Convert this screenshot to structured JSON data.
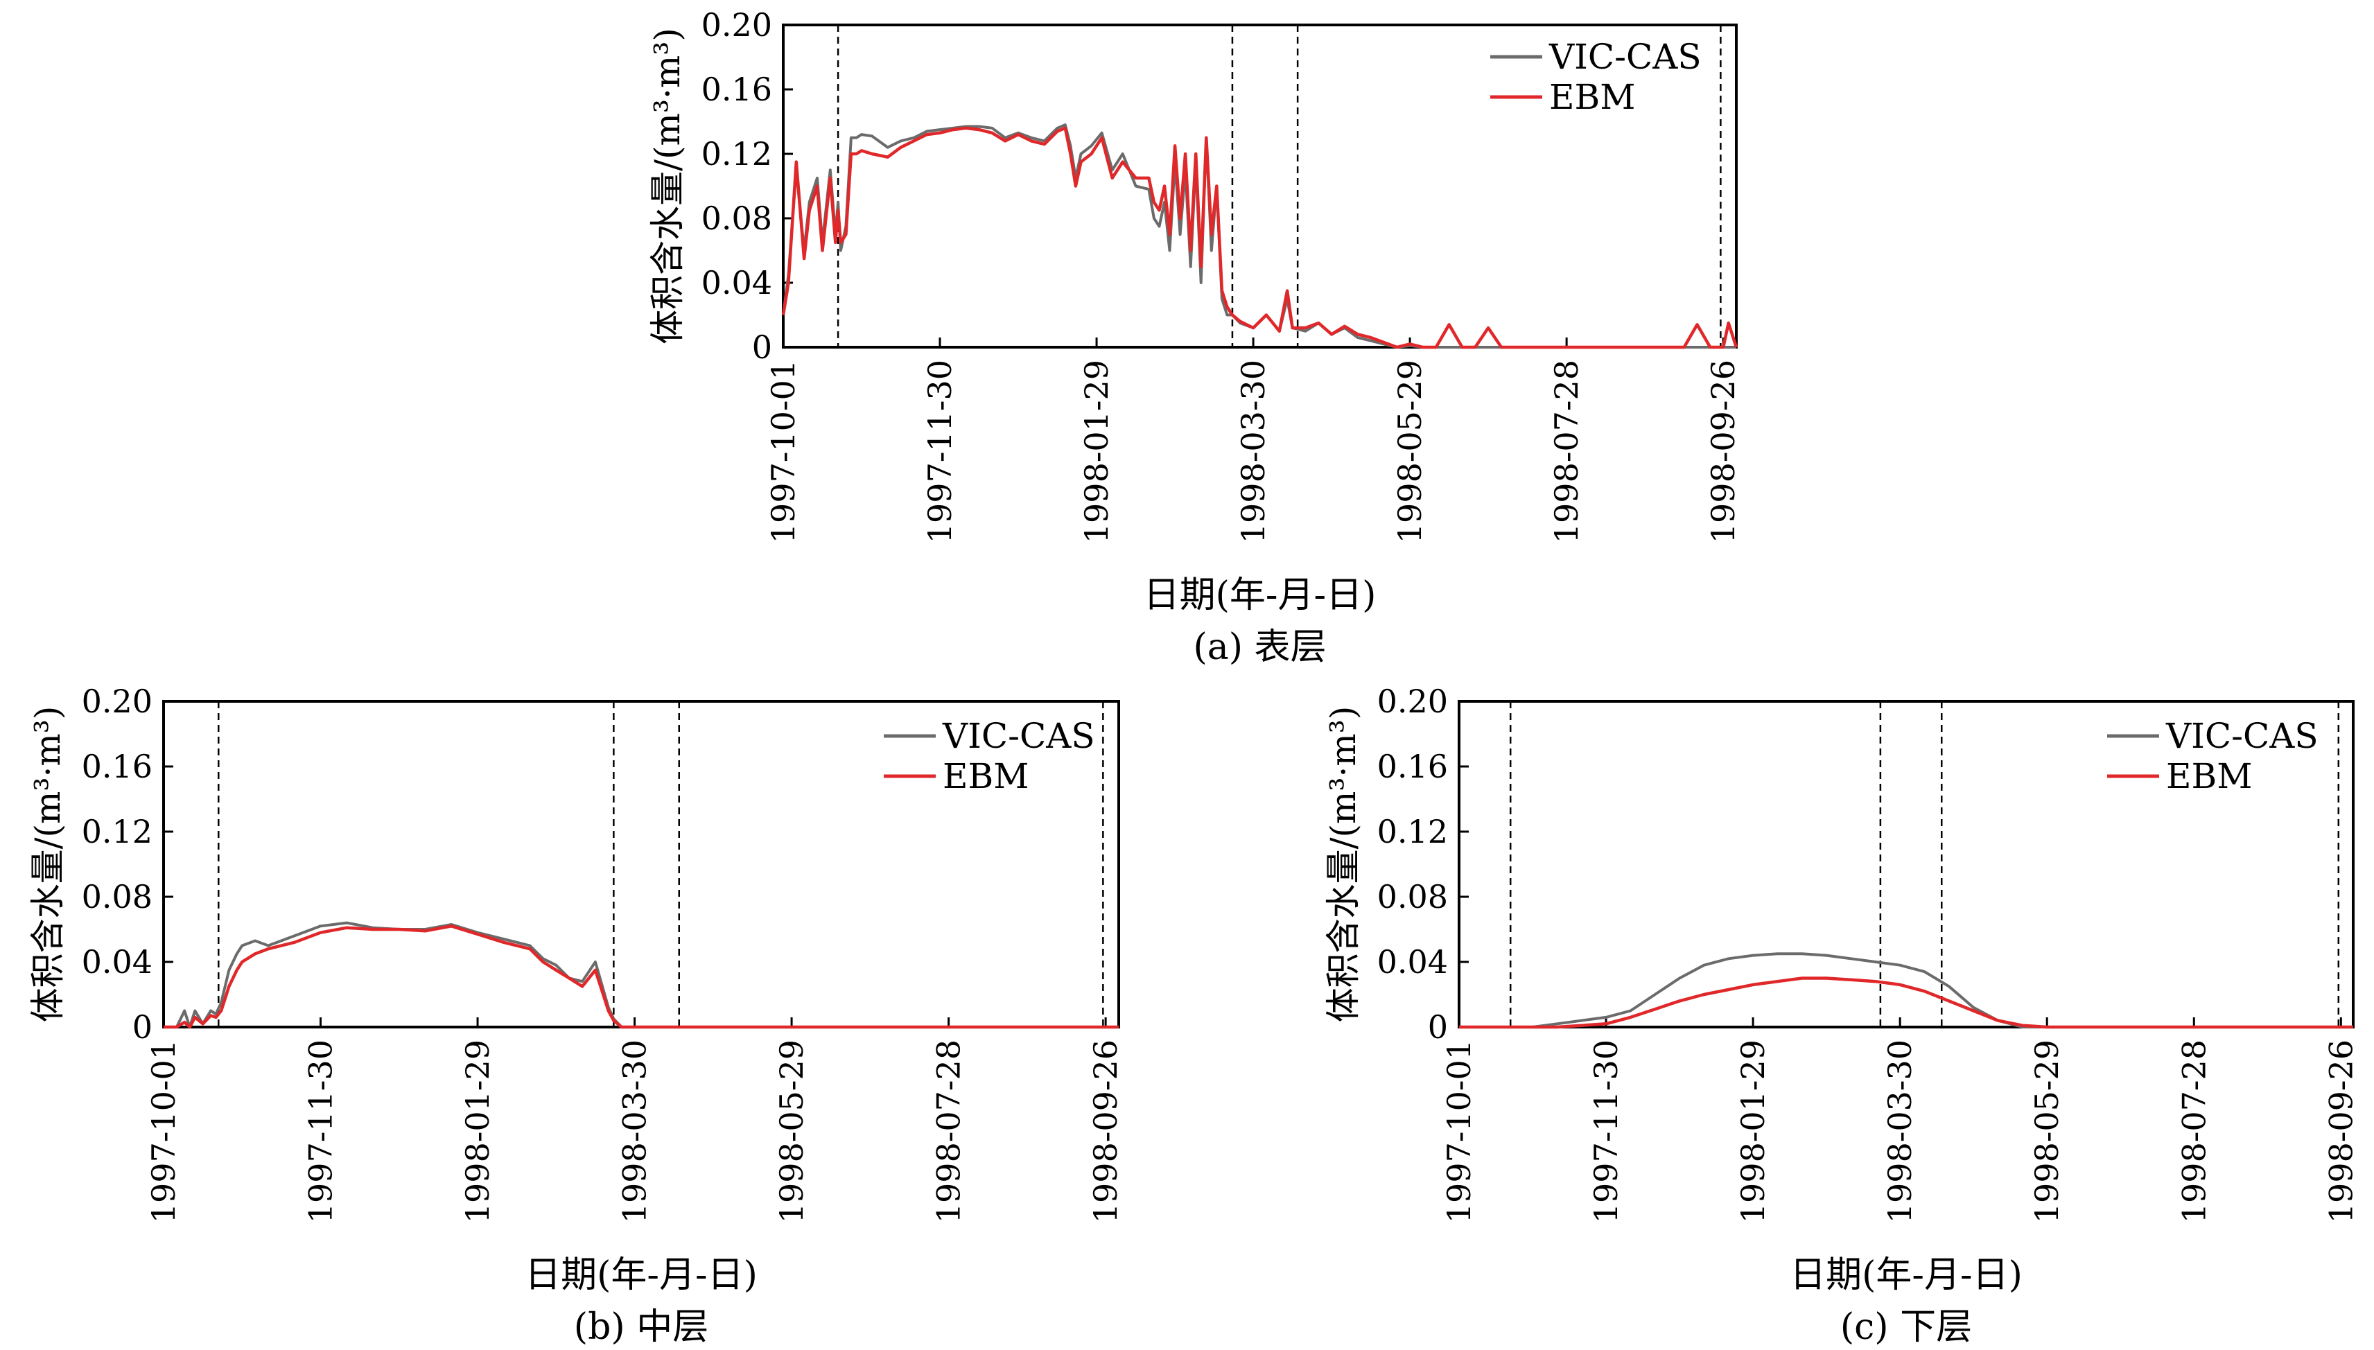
{
  "figure": {
    "xlabel": "日期(年-月-日)",
    "ylabel": "体积含水量/(m³·m³)",
    "xticks": [
      "1997-10-01",
      "1997-11-30",
      "1998-01-29",
      "1998-03-30",
      "1998-05-29",
      "1998-07-28",
      "1998-09-26"
    ],
    "yticks": [
      "0",
      "0.04",
      "0.08",
      "0.12",
      "0.16",
      "0.20"
    ],
    "legend": [
      "VIC-CAS",
      "EBM"
    ],
    "colors": {
      "vic": "#6b6b6b",
      "ebm": "#e0282a",
      "axis": "#000000"
    },
    "panel_captions": [
      "(a) 表层",
      "(b) 中层",
      "(c) 下层"
    ]
  },
  "chart_data": [
    {
      "type": "line",
      "panel": "a",
      "caption": "(a) 表层",
      "xlabel": "日期(年-月-日)",
      "ylabel": "体积含水量/(m³·m³)",
      "xlim": [
        "1997-10-01",
        "1998-10-01"
      ],
      "ylim": [
        0,
        0.2
      ],
      "grid": false,
      "legend_position": "top-right",
      "vlines": [
        "1997-10-22",
        "1998-03-22",
        "1998-04-16",
        "1998-09-25"
      ],
      "series": [
        {
          "name": "VIC-CAS",
          "color": "#6b6b6b",
          "x": [
            0,
            2,
            5,
            8,
            10,
            13,
            15,
            18,
            20,
            21,
            22,
            24,
            26,
            28,
            30,
            34,
            40,
            45,
            50,
            55,
            60,
            65,
            70,
            75,
            80,
            85,
            90,
            95,
            100,
            105,
            108,
            110,
            112,
            114,
            118,
            122,
            126,
            130,
            135,
            140,
            142,
            144,
            146,
            148,
            150,
            152,
            154,
            156,
            158,
            160,
            162,
            164,
            166,
            168,
            170,
            172,
            175,
            180,
            185,
            190,
            193,
            195,
            200,
            205,
            210,
            215,
            220,
            225,
            230,
            235,
            240,
            245,
            250,
            255,
            260,
            265,
            270,
            275,
            280,
            285,
            290,
            295,
            300,
            305,
            310,
            315,
            320,
            325,
            330,
            335,
            340,
            345,
            350,
            355,
            360,
            362,
            365
          ],
          "y": [
            0.02,
            0.045,
            0.11,
            0.06,
            0.09,
            0.105,
            0.065,
            0.11,
            0.07,
            0.09,
            0.06,
            0.075,
            0.13,
            0.13,
            0.132,
            0.131,
            0.124,
            0.128,
            0.13,
            0.134,
            0.135,
            0.136,
            0.137,
            0.137,
            0.136,
            0.13,
            0.133,
            0.13,
            0.128,
            0.136,
            0.138,
            0.125,
            0.105,
            0.12,
            0.125,
            0.133,
            0.11,
            0.12,
            0.1,
            0.098,
            0.08,
            0.075,
            0.09,
            0.06,
            0.115,
            0.07,
            0.11,
            0.05,
            0.115,
            0.04,
            0.13,
            0.06,
            0.1,
            0.03,
            0.02,
            0.02,
            0.015,
            0.012,
            0.02,
            0.01,
            0.03,
            0.012,
            0.01,
            0.015,
            0.008,
            0.012,
            0.006,
            0.004,
            0.002,
            0.0,
            0.001,
            0.0,
            0.0,
            0.0,
            0.0,
            0.0,
            0.0,
            0.0,
            0.0,
            0.0,
            0.0,
            0.0,
            0.0,
            0.0,
            0.0,
            0.0,
            0.0,
            0.0,
            0.0,
            0.0,
            0.0,
            0.0,
            0.0,
            0.0,
            0.0,
            0.0,
            0.0
          ]
        },
        {
          "name": "EBM",
          "color": "#e0282a",
          "x": [
            0,
            2,
            5,
            8,
            10,
            13,
            15,
            18,
            20,
            21,
            22,
            24,
            26,
            28,
            30,
            34,
            40,
            45,
            50,
            55,
            60,
            65,
            70,
            75,
            80,
            85,
            90,
            95,
            100,
            105,
            108,
            110,
            112,
            114,
            118,
            122,
            126,
            130,
            135,
            140,
            142,
            144,
            146,
            148,
            150,
            152,
            154,
            156,
            158,
            160,
            162,
            164,
            166,
            168,
            170,
            172,
            175,
            180,
            185,
            190,
            193,
            195,
            200,
            205,
            210,
            215,
            220,
            225,
            230,
            235,
            240,
            245,
            250,
            255,
            260,
            265,
            270,
            275,
            280,
            285,
            290,
            295,
            300,
            305,
            310,
            315,
            320,
            325,
            330,
            335,
            340,
            345,
            350,
            355,
            360,
            362,
            365
          ],
          "y": [
            0.02,
            0.04,
            0.115,
            0.055,
            0.085,
            0.1,
            0.06,
            0.105,
            0.065,
            0.085,
            0.065,
            0.07,
            0.12,
            0.12,
            0.122,
            0.12,
            0.118,
            0.124,
            0.128,
            0.132,
            0.133,
            0.135,
            0.136,
            0.135,
            0.133,
            0.128,
            0.132,
            0.128,
            0.126,
            0.134,
            0.136,
            0.12,
            0.1,
            0.115,
            0.12,
            0.13,
            0.105,
            0.115,
            0.105,
            0.105,
            0.09,
            0.085,
            0.1,
            0.07,
            0.125,
            0.08,
            0.12,
            0.06,
            0.12,
            0.05,
            0.13,
            0.07,
            0.1,
            0.035,
            0.025,
            0.02,
            0.016,
            0.012,
            0.02,
            0.01,
            0.035,
            0.012,
            0.012,
            0.015,
            0.008,
            0.013,
            0.008,
            0.006,
            0.003,
            0.0,
            0.002,
            0.0,
            0.0,
            0.014,
            0.0,
            0.0,
            0.012,
            0.0,
            0.0,
            0.0,
            0.0,
            0.0,
            0.0,
            0.0,
            0.0,
            0.0,
            0.0,
            0.0,
            0.0,
            0.0,
            0.0,
            0.0,
            0.014,
            0.0,
            0.0,
            0.015,
            0.0
          ]
        }
      ]
    },
    {
      "type": "line",
      "panel": "b",
      "caption": "(b) 中层",
      "xlabel": "日期(年-月-日)",
      "ylabel": "体积含水量/(m³·m³)",
      "xlim": [
        "1997-10-01",
        "1998-10-01"
      ],
      "ylim": [
        0,
        0.2
      ],
      "grid": false,
      "legend_position": "top-right",
      "vlines": [
        "1997-10-22",
        "1998-03-22",
        "1998-04-16",
        "1998-09-25"
      ],
      "series": [
        {
          "name": "VIC-CAS",
          "color": "#6b6b6b",
          "x": [
            0,
            5,
            8,
            10,
            12,
            15,
            18,
            20,
            22,
            25,
            28,
            30,
            35,
            40,
            50,
            60,
            70,
            80,
            90,
            100,
            110,
            120,
            130,
            140,
            145,
            150,
            155,
            160,
            165,
            170,
            172,
            175,
            180,
            190,
            200,
            250,
            300,
            365
          ],
          "y": [
            0.0,
            0.0,
            0.01,
            0.0,
            0.01,
            0.002,
            0.01,
            0.008,
            0.015,
            0.035,
            0.045,
            0.05,
            0.053,
            0.05,
            0.056,
            0.062,
            0.064,
            0.061,
            0.06,
            0.06,
            0.063,
            0.058,
            0.054,
            0.05,
            0.042,
            0.038,
            0.03,
            0.028,
            0.04,
            0.012,
            0.005,
            0.0,
            0.0,
            0.0,
            0.0,
            0.0,
            0.0,
            0.0
          ]
        },
        {
          "name": "EBM",
          "color": "#e0282a",
          "x": [
            0,
            5,
            8,
            10,
            12,
            15,
            18,
            20,
            22,
            25,
            28,
            30,
            35,
            40,
            50,
            60,
            70,
            80,
            90,
            100,
            110,
            120,
            130,
            140,
            145,
            150,
            155,
            160,
            165,
            170,
            172,
            175,
            180,
            190,
            200,
            250,
            300,
            365
          ],
          "y": [
            0.0,
            0.0,
            0.003,
            0.0,
            0.006,
            0.002,
            0.007,
            0.006,
            0.01,
            0.025,
            0.035,
            0.04,
            0.045,
            0.048,
            0.052,
            0.058,
            0.061,
            0.06,
            0.06,
            0.059,
            0.062,
            0.057,
            0.052,
            0.048,
            0.04,
            0.035,
            0.03,
            0.025,
            0.035,
            0.01,
            0.004,
            0.0,
            0.0,
            0.0,
            0.0,
            0.0,
            0.0,
            0.0
          ]
        }
      ]
    },
    {
      "type": "line",
      "panel": "c",
      "caption": "(c) 下层",
      "xlabel": "日期(年-月-日)",
      "ylabel": "体积含水量/(m³·m³)",
      "xlim": [
        "1997-10-01",
        "1998-10-01"
      ],
      "ylim": [
        0,
        0.2
      ],
      "grid": false,
      "legend_position": "top-right",
      "vlines": [
        "1997-10-22",
        "1998-03-22",
        "1998-04-16",
        "1998-09-25"
      ],
      "series": [
        {
          "name": "VIC-CAS",
          "color": "#6b6b6b",
          "x": [
            0,
            30,
            40,
            50,
            60,
            70,
            80,
            90,
            100,
            110,
            120,
            130,
            140,
            150,
            160,
            170,
            180,
            190,
            200,
            210,
            220,
            230,
            240,
            250,
            300,
            365
          ],
          "y": [
            0.0,
            0.0,
            0.002,
            0.004,
            0.006,
            0.01,
            0.02,
            0.03,
            0.038,
            0.042,
            0.044,
            0.045,
            0.045,
            0.044,
            0.042,
            0.04,
            0.038,
            0.034,
            0.025,
            0.012,
            0.004,
            0.0,
            0.0,
            0.0,
            0.0,
            0.0
          ]
        },
        {
          "name": "EBM",
          "color": "#e0282a",
          "x": [
            0,
            30,
            40,
            50,
            60,
            70,
            80,
            90,
            100,
            110,
            120,
            130,
            140,
            150,
            160,
            170,
            180,
            190,
            200,
            210,
            220,
            230,
            240,
            250,
            300,
            365
          ],
          "y": [
            0.0,
            0.0,
            0.0,
            0.001,
            0.002,
            0.006,
            0.011,
            0.016,
            0.02,
            0.023,
            0.026,
            0.028,
            0.03,
            0.03,
            0.029,
            0.028,
            0.026,
            0.022,
            0.016,
            0.01,
            0.004,
            0.001,
            0.0,
            0.0,
            0.0,
            0.0
          ]
        }
      ]
    }
  ]
}
